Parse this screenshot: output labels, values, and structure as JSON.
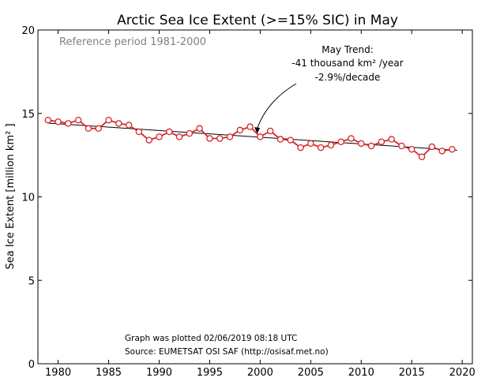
{
  "chart_data": {
    "type": "line",
    "title": "Arctic Sea Ice Extent (>=15% SIC) in May",
    "xlabel": "",
    "ylabel": "Sea Ice Extent [million km² ]",
    "xlim": [
      1978,
      2021
    ],
    "ylim": [
      0,
      20
    ],
    "xticks": [
      1980,
      1985,
      1990,
      1995,
      2000,
      2005,
      2010,
      2015,
      2020
    ],
    "yticks": [
      0,
      5,
      10,
      15,
      20
    ],
    "grid": false,
    "legend": "none",
    "reference_note": "Reference period 1981-2000",
    "trend_annotation": {
      "line1": "May Trend:",
      "line2": "-41 thousand km² /year",
      "line3": "-2.9%/decade",
      "arrow_target": {
        "x": 1999.7,
        "y": 13.8
      }
    },
    "footer": {
      "line1": "Graph was plotted 02/06/2019 08:18 UTC",
      "line2": "Source: EUMETSAT OSI SAF (http://osisaf.met.no)"
    },
    "series": [
      {
        "x": [
          1979,
          1980,
          1981,
          1982,
          1983,
          1984,
          1985,
          1986,
          1987,
          1988,
          1989,
          1990,
          1991,
          1992,
          1993,
          1994,
          1995,
          1996,
          1997,
          1998,
          1999,
          2000,
          2001,
          2002,
          2003,
          2004,
          2005,
          2006,
          2007,
          2008,
          2009,
          2010,
          2011,
          2012,
          2013,
          2014,
          2015,
          2016,
          2017,
          2018,
          2019
        ],
        "values": [
          14.6,
          14.5,
          14.4,
          14.6,
          14.1,
          14.1,
          14.6,
          14.4,
          14.3,
          13.9,
          13.4,
          13.6,
          13.9,
          13.6,
          13.8,
          14.1,
          13.5,
          13.5,
          13.6,
          14.0,
          14.2,
          13.6,
          13.95,
          13.45,
          13.4,
          12.95,
          13.2,
          12.95,
          13.1,
          13.3,
          13.5,
          13.2,
          13.05,
          13.3,
          13.45,
          13.05,
          12.85,
          12.4,
          13.0,
          12.75,
          12.85
        ]
      }
    ],
    "trend_line": {
      "x": [
        1979,
        2019.5
      ],
      "y": [
        14.42,
        12.79
      ]
    },
    "colors": {
      "series": "#d62728",
      "marker_fill": "#ffffff",
      "trend": "#000000",
      "note": "#808080",
      "text": "#000000"
    }
  }
}
